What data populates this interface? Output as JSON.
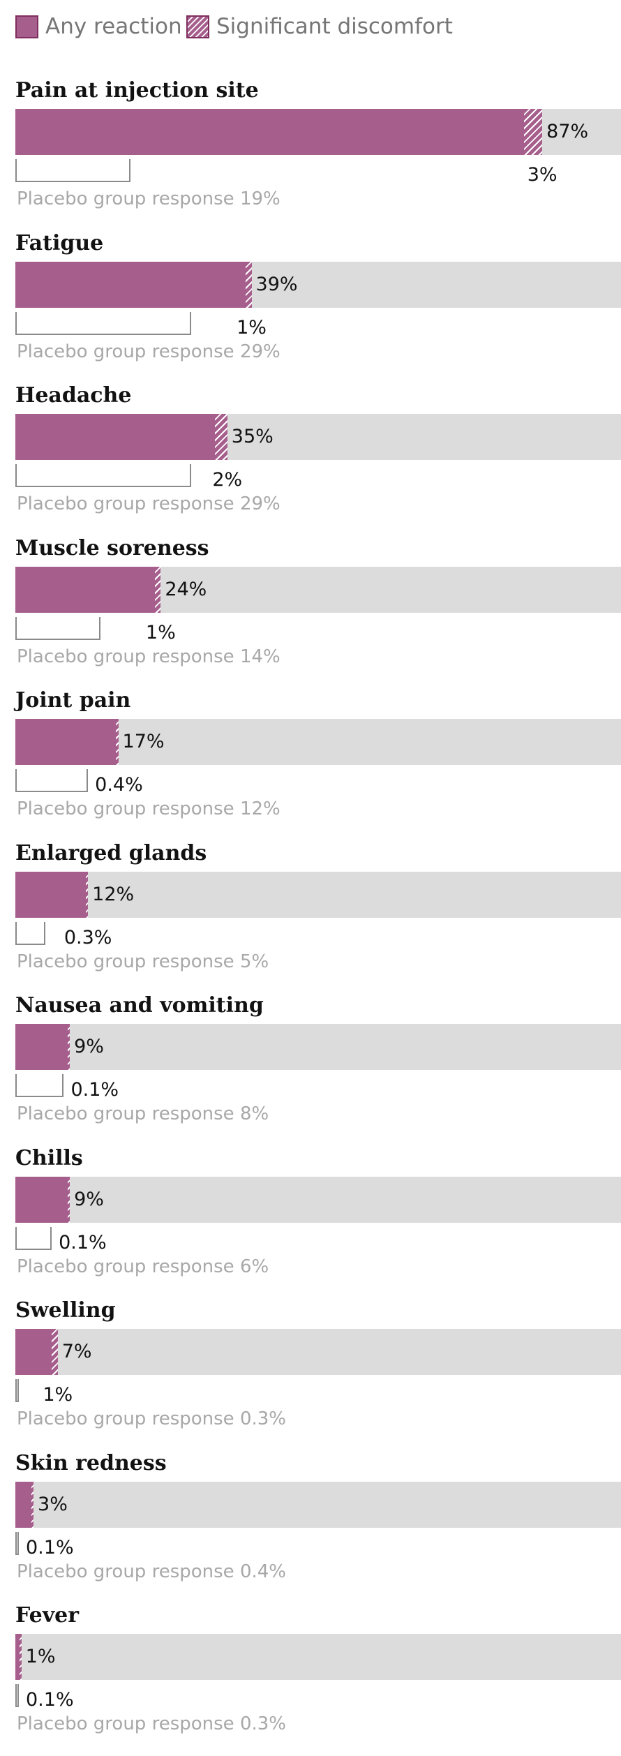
{
  "legend": {
    "any_label": "Any reaction",
    "significant_label": "Significant discomfort"
  },
  "colors": {
    "bar": "#a65e8c",
    "track": "#dcdcdc",
    "placebo_outline": "#8a8a8a",
    "placebo_text": "#a8a8a8"
  },
  "placebo_prefix": "Placebo group response",
  "chart_data": {
    "type": "bar",
    "orientation": "horizontal",
    "xlim": [
      0,
      100
    ],
    "legend_position": "top-left",
    "categories": [
      "Pain at injection site",
      "Fatigue",
      "Headache",
      "Muscle soreness",
      "Joint pain",
      "Enlarged glands",
      "Nausea and vomiting",
      "Chills",
      "Swelling",
      "Skin redness",
      "Fever"
    ],
    "series": [
      {
        "name": "Any reaction",
        "values": [
          87,
          39,
          35,
          24,
          17,
          12,
          9,
          9,
          7,
          3,
          1
        ]
      },
      {
        "name": "Significant discomfort",
        "values": [
          3,
          1,
          2,
          1,
          0.4,
          0.3,
          0.1,
          0.1,
          1,
          0.1,
          0.1
        ]
      },
      {
        "values": [
          19,
          29,
          29,
          14,
          12,
          5,
          8,
          6,
          0.3,
          0.4,
          0.3
        ]
      }
    ],
    "labels": {
      "any": [
        "87%",
        "39%",
        "35%",
        "24%",
        "17%",
        "12%",
        "9%",
        "9%",
        "7%",
        "3%",
        "1%"
      ],
      "significant": [
        "3%",
        "1%",
        "2%",
        "1%",
        "0.4%",
        "0.3%",
        "0.1%",
        "0.1%",
        "1%",
        "0.1%",
        "0.1%"
      ],
      "placebo": [
        "19%",
        "29%",
        "29%",
        "14%",
        "12%",
        "5%",
        "8%",
        "6%",
        "0.3%",
        "0.4%",
        "0.3%"
      ]
    }
  }
}
